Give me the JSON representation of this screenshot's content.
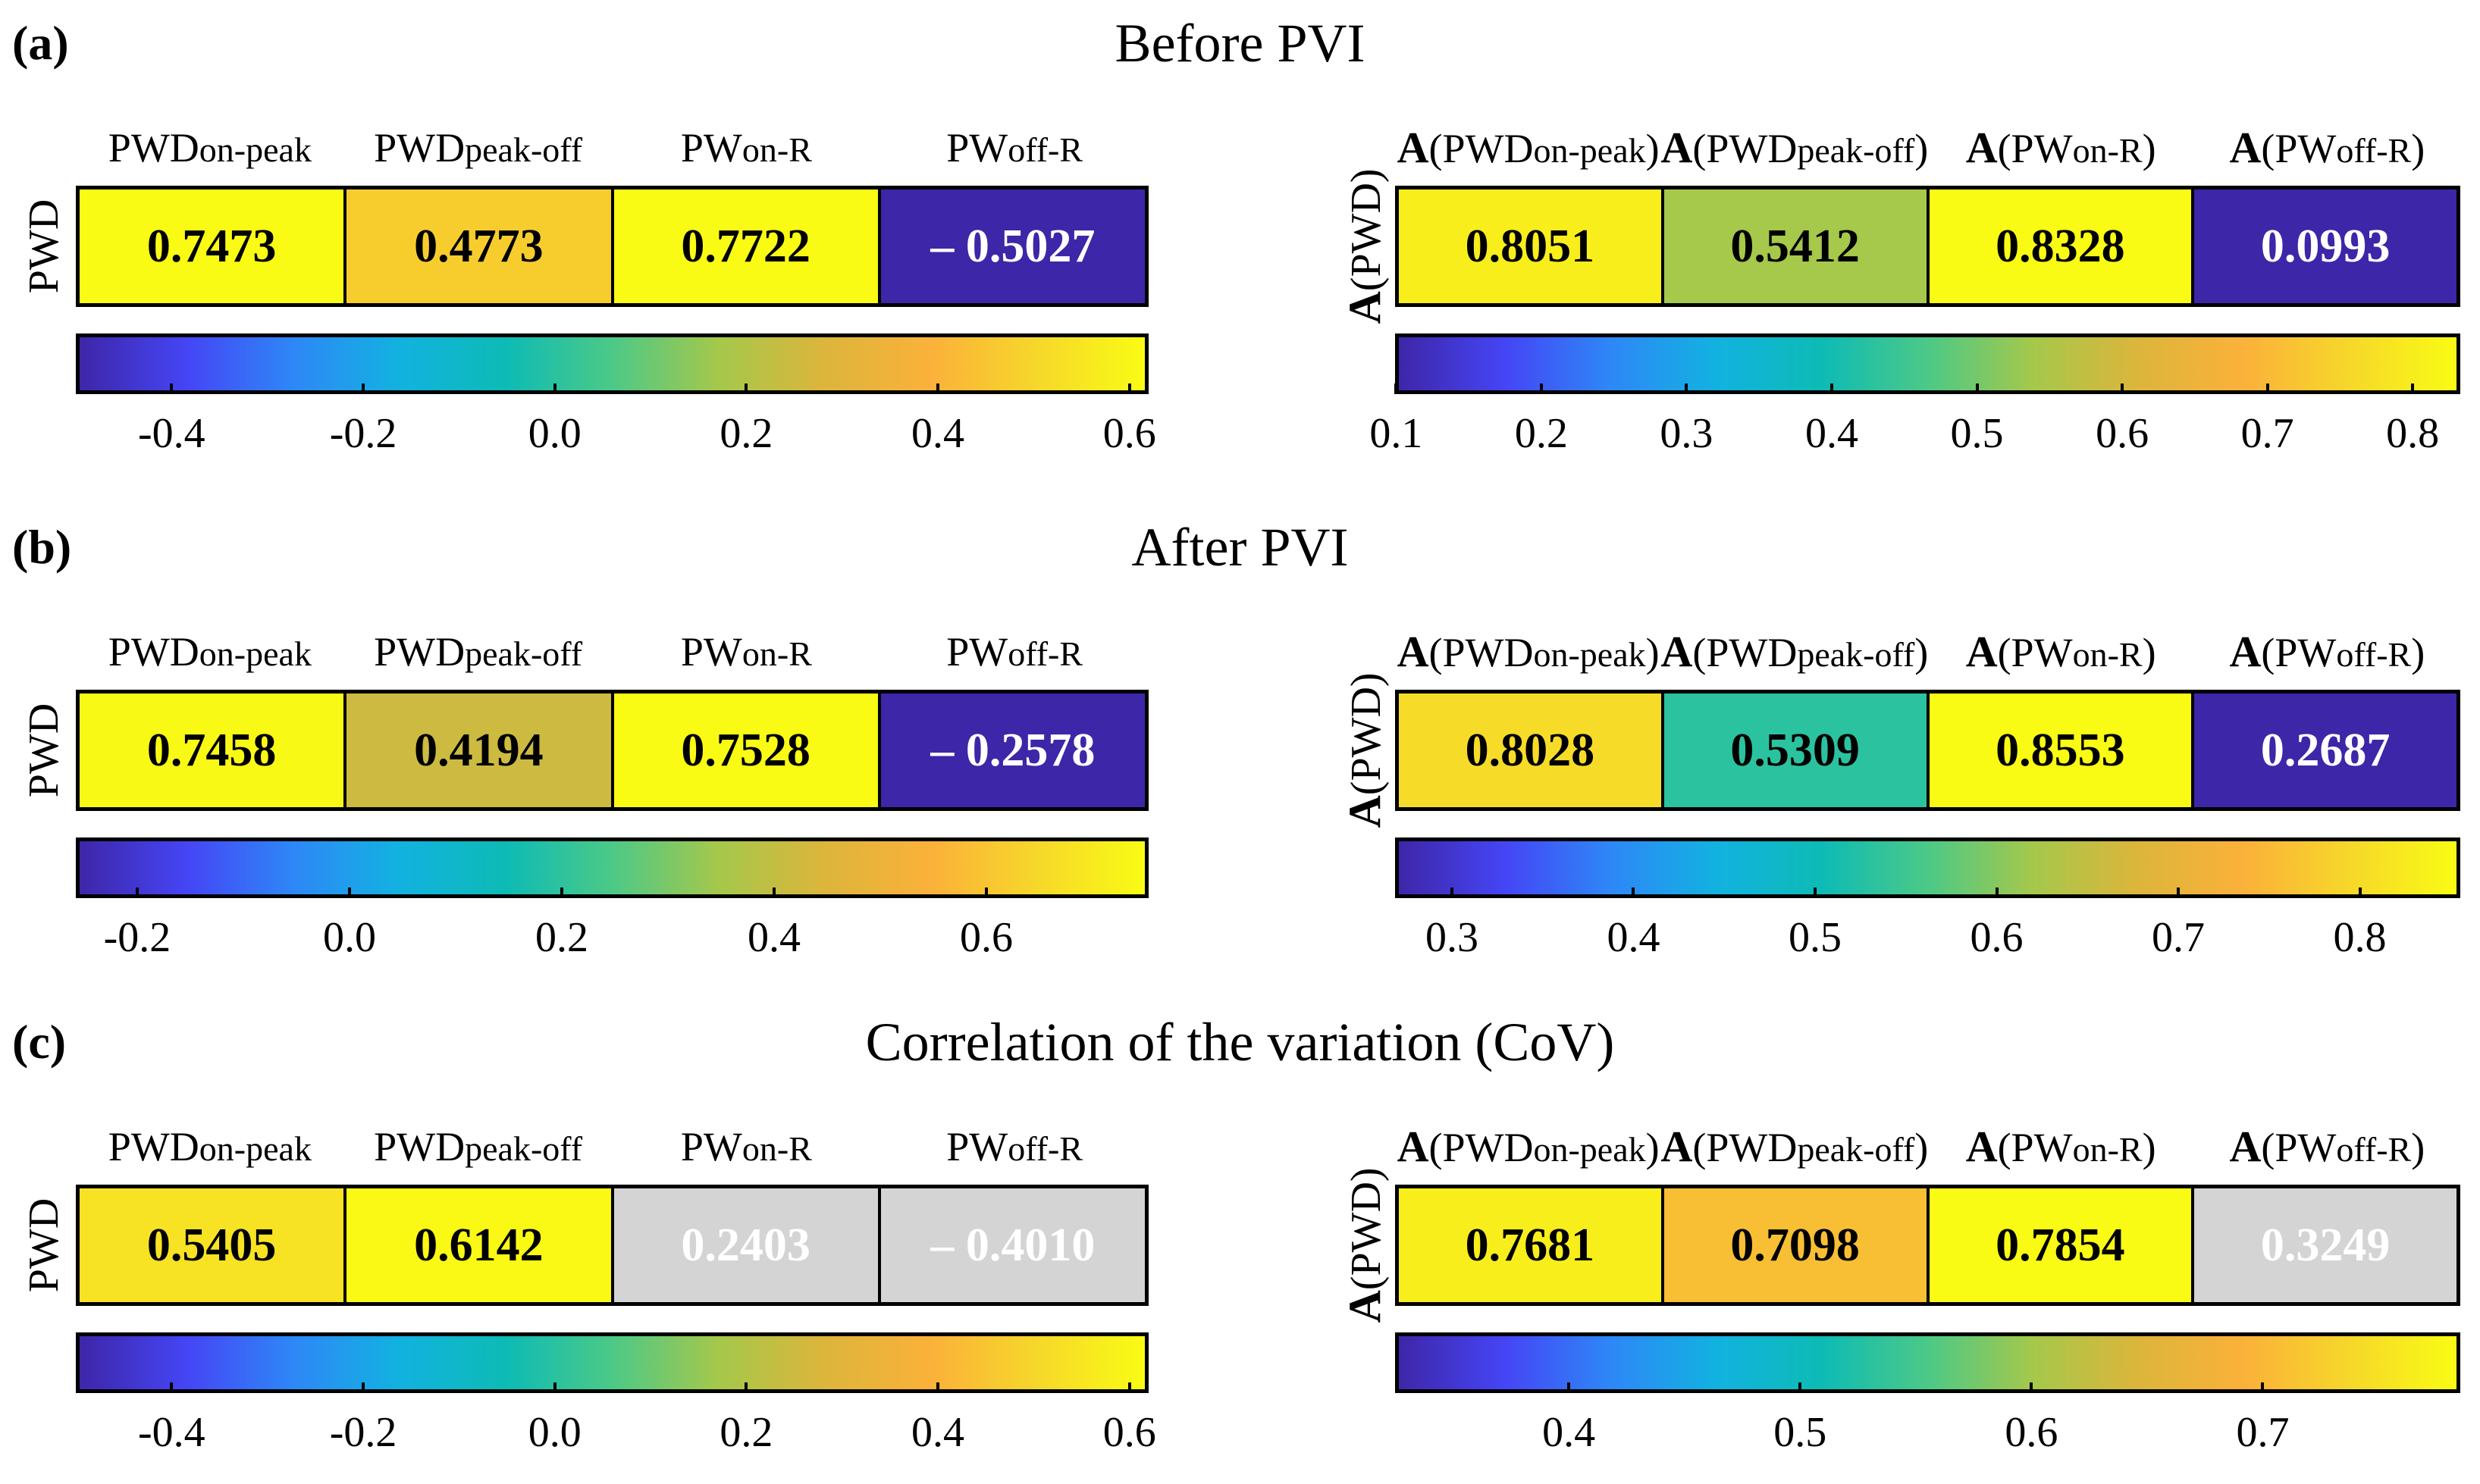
{
  "colormap": [
    "#3e26a8",
    "#4545f5",
    "#2e87f7",
    "#12b2e0",
    "#0dbbb5",
    "#4cc987",
    "#a5c84b",
    "#ddb53b",
    "#fbb13a",
    "#f6d82a",
    "#f9fb14"
  ],
  "neutral_color": "#d4d4d4",
  "chart_data": [
    {
      "panel": "(a)",
      "title": "Before PVI",
      "charts": [
        {
          "type": "heatmap",
          "ylabel": "PWD",
          "columns": [
            {
              "main": "PWD",
              "sub": "on-peak"
            },
            {
              "main": "PWD",
              "sub": "peak-off"
            },
            {
              "main": "PW",
              "sub": "on-R"
            },
            {
              "main": "PW",
              "sub": "off-R"
            }
          ],
          "values": [
            0.7473,
            0.4773,
            0.7722,
            -0.5027
          ],
          "labels": [
            "0.7473",
            "0.4773",
            "0.7722",
            "– 0.5027"
          ],
          "clim": [
            -0.5,
            0.62
          ],
          "ticks": [
            "-0.4",
            "-0.2",
            "0.0",
            "0.2",
            "0.4",
            "0.6"
          ]
        },
        {
          "type": "heatmap",
          "ylabel_bold": "A",
          "ylabel": "(PWD)",
          "columns": [
            {
              "prefix": "A",
              "main": "(PWD",
              "sub": "on-peak",
              "end": ")"
            },
            {
              "prefix": "A",
              "main": "(PWD",
              "sub": "peak-off",
              "end": ")"
            },
            {
              "prefix": "A",
              "main": "(PW",
              "sub": "on-R",
              "end": ")"
            },
            {
              "prefix": "A",
              "main": "(PW",
              "sub": "off-R",
              "end": ")"
            }
          ],
          "values": [
            0.8051,
            0.5412,
            0.8328,
            0.0993
          ],
          "labels": [
            "0.8051",
            "0.5412",
            "0.8328",
            "0.0993"
          ],
          "clim": [
            0.0993,
            0.8328
          ],
          "ticks": [
            "0.1",
            "0.2",
            "0.3",
            "0.4",
            "0.5",
            "0.6",
            "0.7",
            "0.8"
          ]
        }
      ]
    },
    {
      "panel": "(b)",
      "title": "After PVI",
      "charts": [
        {
          "type": "heatmap",
          "ylabel": "PWD",
          "columns": [
            {
              "main": "PWD",
              "sub": "on-peak"
            },
            {
              "main": "PWD",
              "sub": "peak-off"
            },
            {
              "main": "PW",
              "sub": "on-R"
            },
            {
              "main": "PW",
              "sub": "off-R"
            }
          ],
          "values": [
            0.7458,
            0.4194,
            0.7528,
            -0.2578
          ],
          "labels": [
            "0.7458",
            "0.4194",
            "0.7528",
            "– 0.2578"
          ],
          "clim": [
            -0.2578,
            0.7528
          ],
          "ticks": [
            "-0.2",
            "0.0",
            "0.2",
            "0.4",
            "0.6"
          ]
        },
        {
          "type": "heatmap",
          "ylabel_bold": "A",
          "ylabel": "(PWD)",
          "columns": [
            {
              "prefix": "A",
              "main": "(PWD",
              "sub": "on-peak",
              "end": ")"
            },
            {
              "prefix": "A",
              "main": "(PWD",
              "sub": "peak-off",
              "end": ")"
            },
            {
              "prefix": "A",
              "main": "(PW",
              "sub": "on-R",
              "end": ")"
            },
            {
              "prefix": "A",
              "main": "(PW",
              "sub": "off-R",
              "end": ")"
            }
          ],
          "values": [
            0.8028,
            0.5309,
            0.8553,
            0.2687
          ],
          "labels": [
            "0.8028",
            "0.5309",
            "0.8553",
            "0.2687"
          ],
          "clim": [
            0.2687,
            0.8553
          ],
          "ticks": [
            "0.3",
            "0.4",
            "0.5",
            "0.6",
            "0.7",
            "0.8"
          ]
        }
      ]
    },
    {
      "panel": "(c)",
      "title": "Correlation of the variation (CoV)",
      "charts": [
        {
          "type": "heatmap",
          "ylabel": "PWD",
          "columns": [
            {
              "main": "PWD",
              "sub": "on-peak"
            },
            {
              "main": "PWD",
              "sub": "peak-off"
            },
            {
              "main": "PW",
              "sub": "on-R"
            },
            {
              "main": "PW",
              "sub": "off-R"
            }
          ],
          "values": [
            0.5405,
            0.6142,
            0.2403,
            -0.401
          ],
          "labels": [
            "0.5405",
            "0.6142",
            "0.2403",
            "– 0.4010"
          ],
          "neutral": [
            false,
            false,
            true,
            true
          ],
          "clim": [
            -0.5,
            0.62
          ],
          "ticks": [
            "-0.4",
            "-0.2",
            "0.0",
            "0.2",
            "0.4",
            "0.6"
          ]
        },
        {
          "type": "heatmap",
          "ylabel_bold": "A",
          "ylabel": "(PWD)",
          "columns": [
            {
              "prefix": "A",
              "main": "(PWD",
              "sub": "on-peak",
              "end": ")"
            },
            {
              "prefix": "A",
              "main": "(PWD",
              "sub": "peak-off",
              "end": ")"
            },
            {
              "prefix": "A",
              "main": "(PW",
              "sub": "on-R",
              "end": ")"
            },
            {
              "prefix": "A",
              "main": "(PW",
              "sub": "off-R",
              "end": ")"
            }
          ],
          "values": [
            0.7681,
            0.7098,
            0.7854,
            0.3249
          ],
          "labels": [
            "0.7681",
            "0.7098",
            "0.7854",
            "0.3249"
          ],
          "neutral": [
            false,
            false,
            false,
            true
          ],
          "clim": [
            0.3249,
            0.7854
          ],
          "ticks": [
            "0.4",
            "0.5",
            "0.6",
            "0.7"
          ]
        }
      ]
    }
  ]
}
